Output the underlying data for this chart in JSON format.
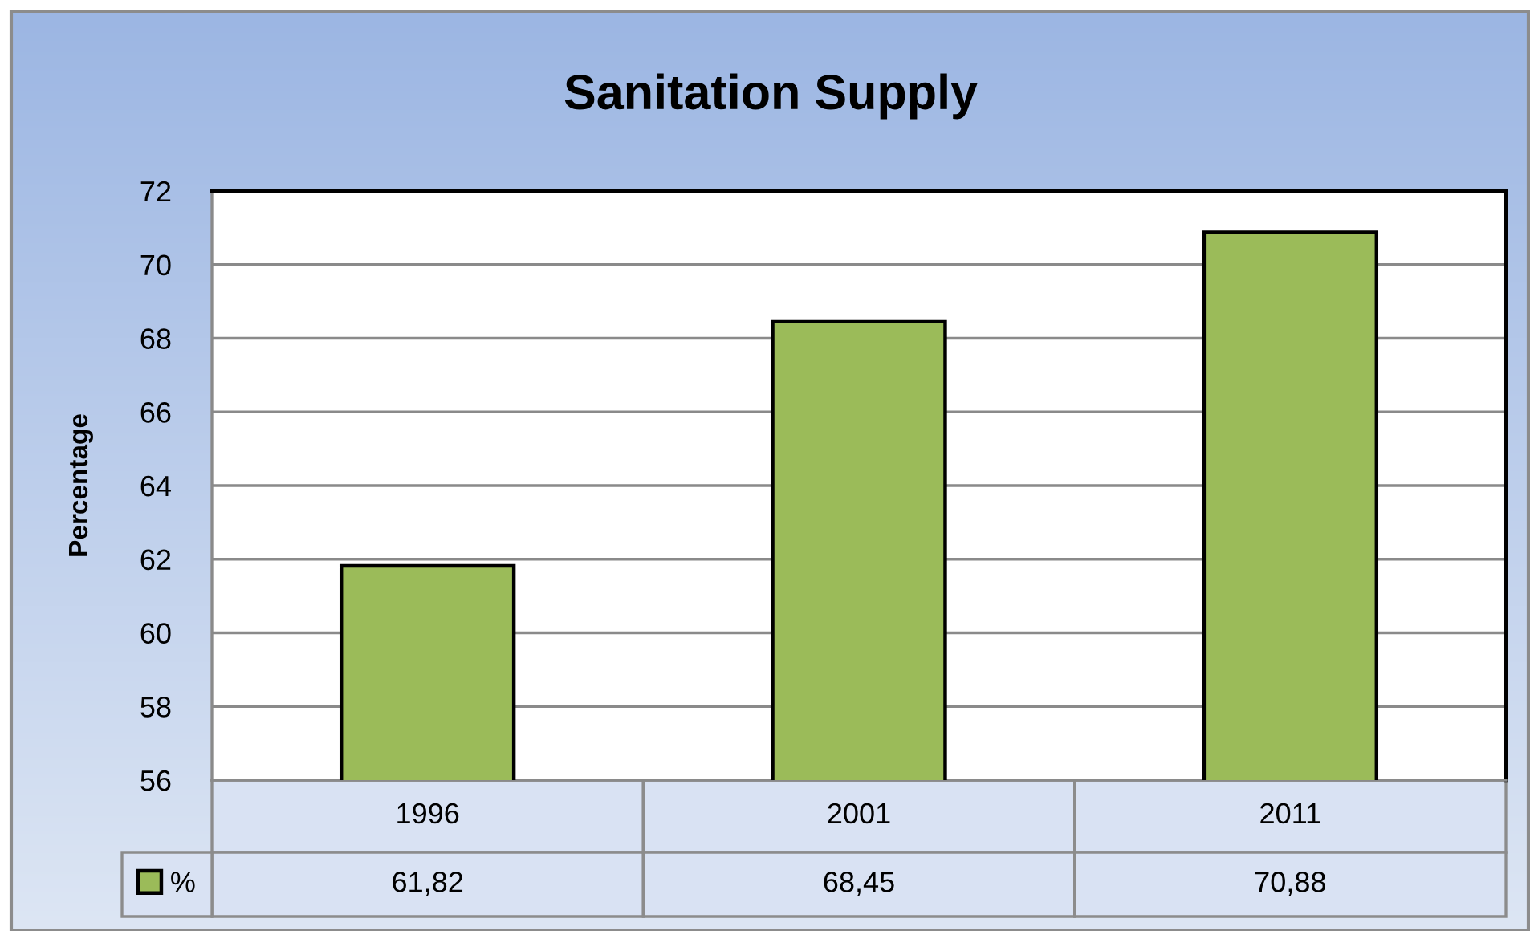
{
  "chart_data": {
    "type": "bar",
    "title": "Sanitation Supply",
    "ylabel": "Percentage",
    "categories": [
      "1996",
      "2001",
      "2011"
    ],
    "series": [
      {
        "name": "%",
        "color": "#9bbb59",
        "values": [
          61.82,
          68.45,
          70.88
        ],
        "value_labels": [
          "61,82",
          "68,45",
          "70,88"
        ]
      }
    ],
    "ylim": [
      56,
      72
    ],
    "yticks": [
      56,
      58,
      60,
      62,
      64,
      66,
      68,
      70,
      72
    ],
    "grid": "y",
    "legend": "bottom left"
  }
}
